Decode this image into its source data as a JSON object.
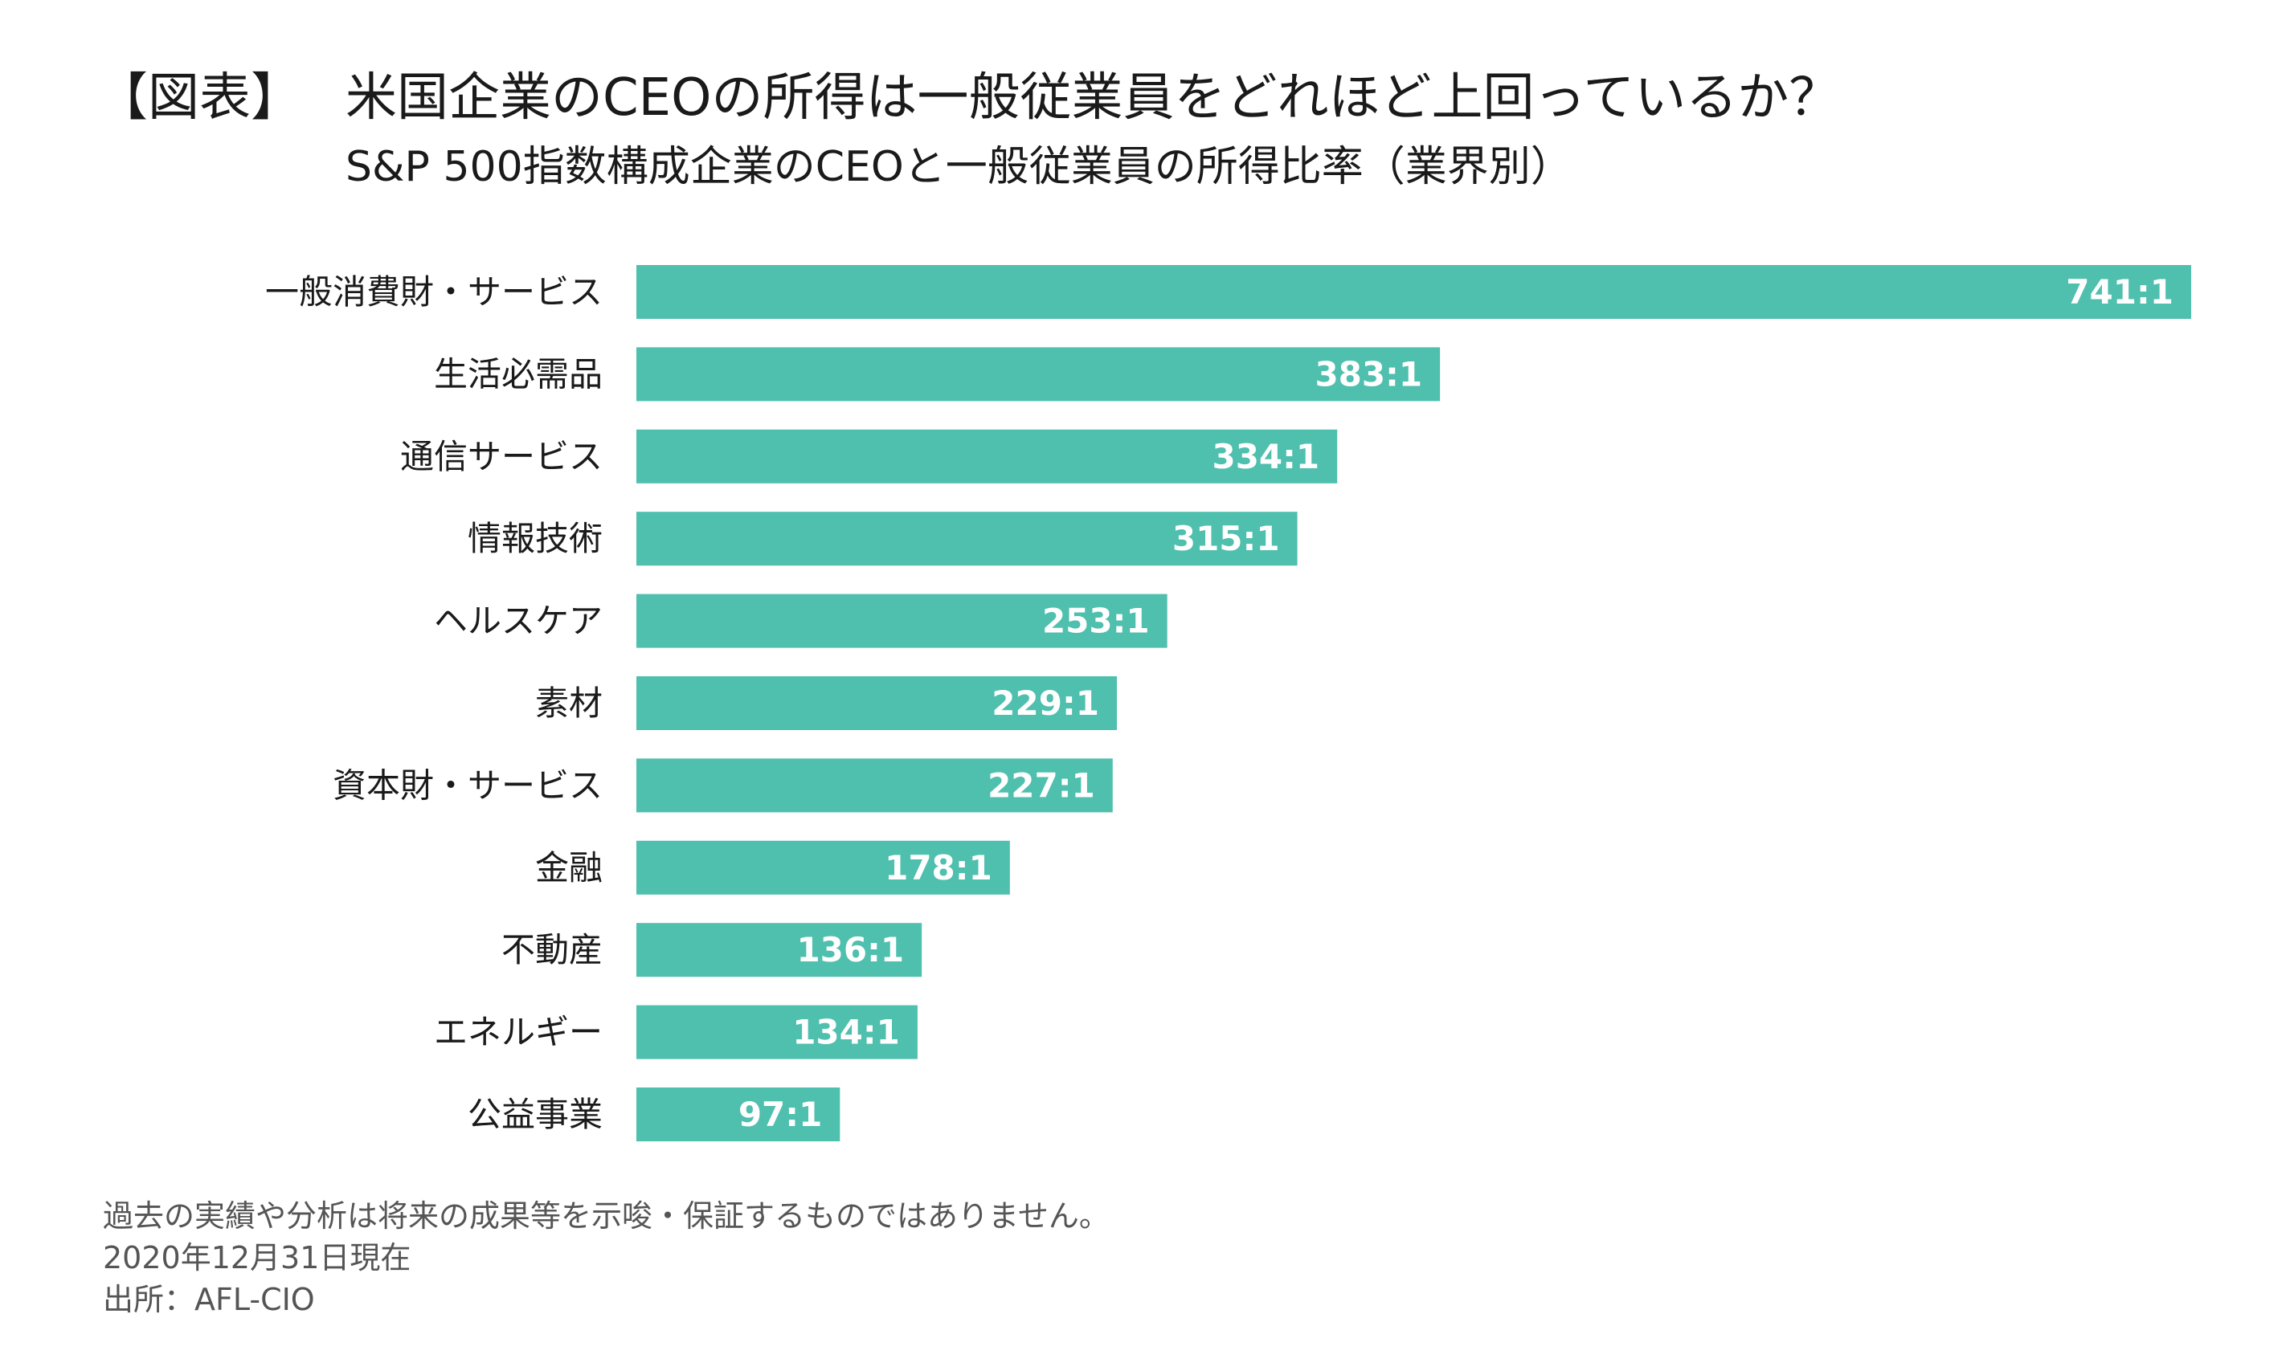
{
  "header": {
    "figure_tag": "【図表】",
    "title": "米国企業のCEOの所得は一般従業員をどれほど上回っているか？",
    "subtitle": "S&P 500指数構成企業のCEOと一般従業員の所得比率（業界別）"
  },
  "chart_data": {
    "type": "bar",
    "orientation": "horizontal",
    "title": "米国企業のCEOの所得は一般従業員をどれほど上回っているか？",
    "subtitle": "S&P 500指数構成企業のCEOと一般従業員の所得比率（業界別）",
    "categories": [
      "一般消費財・サービス",
      "生活必需品",
      "通信サービス",
      "情報技術",
      "ヘルスケア",
      "素材",
      "資本財・サービス",
      "金融",
      "不動産",
      "エネルギー",
      "公益事業"
    ],
    "values": [
      741,
      383,
      334,
      315,
      253,
      229,
      227,
      178,
      136,
      134,
      97
    ],
    "value_labels": [
      "741:1",
      "383:1",
      "334:1",
      "315:1",
      "253:1",
      "229:1",
      "227:1",
      "178:1",
      "136:1",
      "134:1",
      "97:1"
    ],
    "xlim": [
      0,
      741
    ],
    "bar_color": "#4fbfae",
    "grid": false,
    "legend": "none"
  },
  "footer": {
    "disclaimer": "過去の実績や分析は将来の成果等を示唆・保証するものではありません。",
    "date": "2020年12月31日現在",
    "source": "出所：AFL-CIO"
  }
}
